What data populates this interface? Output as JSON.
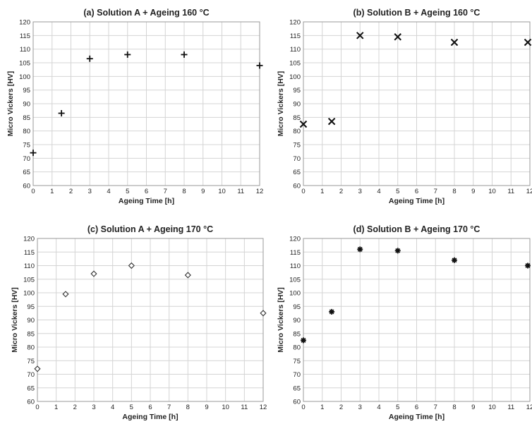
{
  "chart_data": [
    {
      "type": "scatter",
      "title": "(a) Solution A + Ageing 160 °C",
      "xlabel": "Ageing Time [h]",
      "ylabel": "Micro Vickers [HV]",
      "xlim": [
        0,
        12
      ],
      "ylim": [
        60,
        120
      ],
      "xticks": [
        0,
        1,
        2,
        3,
        4,
        5,
        6,
        7,
        8,
        9,
        10,
        11,
        12
      ],
      "yticks": [
        60,
        65,
        70,
        75,
        80,
        85,
        90,
        95,
        100,
        105,
        110,
        115,
        120
      ],
      "grid": true,
      "marker": "plus",
      "x": [
        0,
        1.5,
        3,
        5,
        8,
        12
      ],
      "y": [
        72,
        86.5,
        106.5,
        108,
        108,
        104
      ]
    },
    {
      "type": "scatter",
      "title": "(b) Solution B + Ageing 160 °C",
      "xlabel": "Ageing Time [h]",
      "ylabel": "Micro Vickers [HV]",
      "xlim": [
        0,
        12
      ],
      "ylim": [
        60,
        120
      ],
      "xticks": [
        0,
        1,
        2,
        3,
        4,
        5,
        6,
        7,
        8,
        9,
        10,
        11,
        12
      ],
      "yticks": [
        60,
        65,
        70,
        75,
        80,
        85,
        90,
        95,
        100,
        105,
        110,
        115,
        120
      ],
      "grid": true,
      "marker": "cross",
      "x": [
        0,
        1.5,
        3,
        5,
        8,
        12
      ],
      "y": [
        82.5,
        83.5,
        115,
        114.5,
        112.5,
        112.5
      ]
    },
    {
      "type": "scatter",
      "title": "(c) Solution A + Ageing 170 °C",
      "xlabel": "Ageing Time [h]",
      "ylabel": "Micro Vickers [HV]",
      "xlim": [
        0,
        12
      ],
      "ylim": [
        60,
        120
      ],
      "xticks": [
        0,
        1,
        2,
        3,
        4,
        5,
        6,
        7,
        8,
        9,
        10,
        11,
        12
      ],
      "yticks": [
        60,
        65,
        70,
        75,
        80,
        85,
        90,
        95,
        100,
        105,
        110,
        115,
        120
      ],
      "grid": true,
      "marker": "diamond",
      "x": [
        0,
        1.5,
        3,
        5,
        8,
        12
      ],
      "y": [
        72,
        99.5,
        107,
        110,
        106.5,
        92.5
      ]
    },
    {
      "type": "scatter",
      "title": "(d) Solution B + Ageing 170 °C",
      "xlabel": "Ageing Time [h]",
      "ylabel": "Micro Vickers [HV]",
      "xlim": [
        0,
        12
      ],
      "ylim": [
        60,
        120
      ],
      "xticks": [
        0,
        1,
        2,
        3,
        4,
        5,
        6,
        7,
        8,
        9,
        10,
        11,
        12
      ],
      "yticks": [
        60,
        65,
        70,
        75,
        80,
        85,
        90,
        95,
        100,
        105,
        110,
        115,
        120
      ],
      "grid": true,
      "marker": "asterisk",
      "x": [
        0,
        1.5,
        3,
        5,
        8,
        12
      ],
      "y": [
        82.5,
        93,
        116,
        115.5,
        112,
        110
      ]
    }
  ]
}
